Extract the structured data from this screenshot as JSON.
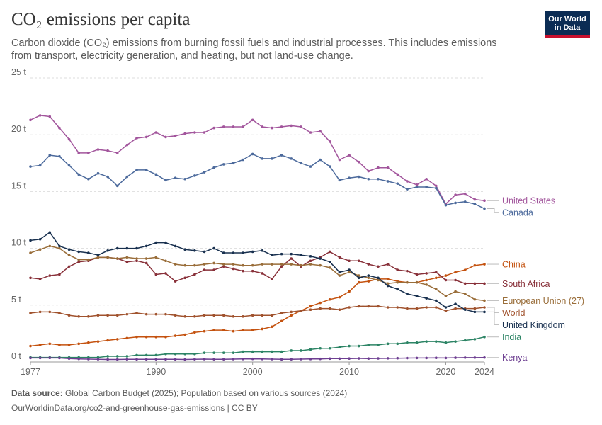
{
  "header": {
    "title": "CO₂ emissions per capita",
    "subtitle": "Carbon dioxide (CO₂) emissions from burning fossil fuels and industrial processes. This includes emissions from transport, electricity generation, and heating, but not land-use change."
  },
  "logo": {
    "line1": "Our World",
    "line2": "in Data",
    "bg_color": "#0b2c54",
    "accent_color": "#c8102e"
  },
  "footer": {
    "source_label": "Data source:",
    "source_text": "Global Carbon Budget (2025); Population based on various sources (2024)",
    "url_text": "OurWorldinData.org/co2-and-greenhouse-gas-emissions | CC BY"
  },
  "chart_data": {
    "type": "line",
    "title": "CO₂ emissions per capita",
    "x_ticks": [
      1977,
      1990,
      2000,
      2010,
      2020,
      2024
    ],
    "y_ticks": [
      {
        "value": 0,
        "label": "0 t"
      },
      {
        "value": 5,
        "label": "5 t"
      },
      {
        "value": 10,
        "label": "10 t"
      },
      {
        "value": 15,
        "label": "15 t"
      },
      {
        "value": 20,
        "label": "20 t"
      },
      {
        "value": 25,
        "label": "25 t"
      }
    ],
    "xlim": [
      1977,
      2024
    ],
    "ylim": [
      0,
      25
    ],
    "grid": "horizontal dashed",
    "legend": "right (line-end labels)",
    "x": [
      1977,
      1978,
      1979,
      1980,
      1981,
      1982,
      1983,
      1984,
      1985,
      1986,
      1987,
      1988,
      1989,
      1990,
      1991,
      1992,
      1993,
      1994,
      1995,
      1996,
      1997,
      1998,
      1999,
      2000,
      2001,
      2002,
      2003,
      2004,
      2005,
      2006,
      2007,
      2008,
      2009,
      2010,
      2011,
      2012,
      2013,
      2014,
      2015,
      2016,
      2017,
      2018,
      2019,
      2020,
      2021,
      2022,
      2023,
      2024
    ],
    "series": [
      {
        "name": "United States",
        "color": "#a2559c",
        "values": [
          21.3,
          21.7,
          21.6,
          20.6,
          19.6,
          18.4,
          18.4,
          18.7,
          18.6,
          18.4,
          19.1,
          19.7,
          19.8,
          20.2,
          19.8,
          19.9,
          20.1,
          20.2,
          20.2,
          20.6,
          20.7,
          20.7,
          20.7,
          21.3,
          20.7,
          20.6,
          20.7,
          20.8,
          20.7,
          20.2,
          20.3,
          19.4,
          17.8,
          18.2,
          17.6,
          16.8,
          17.1,
          17.1,
          16.5,
          15.9,
          15.6,
          16.1,
          15.5,
          13.9,
          14.7,
          14.8,
          14.3,
          14.2
        ]
      },
      {
        "name": "Canada",
        "color": "#4c6a9c",
        "values": [
          17.2,
          17.3,
          18.2,
          18.1,
          17.3,
          16.5,
          16.1,
          16.6,
          16.3,
          15.5,
          16.3,
          16.9,
          16.9,
          16.5,
          16.0,
          16.2,
          16.1,
          16.4,
          16.7,
          17.1,
          17.4,
          17.5,
          17.8,
          18.3,
          17.9,
          17.9,
          18.2,
          17.9,
          17.5,
          17.2,
          17.8,
          17.2,
          16.0,
          16.2,
          16.3,
          16.1,
          16.1,
          15.9,
          15.7,
          15.2,
          15.4,
          15.4,
          15.3,
          13.8,
          14.0,
          14.1,
          13.9,
          13.5
        ]
      },
      {
        "name": "China",
        "color": "#c4520f",
        "values": [
          1.4,
          1.5,
          1.6,
          1.5,
          1.5,
          1.6,
          1.7,
          1.8,
          1.9,
          2.0,
          2.1,
          2.2,
          2.2,
          2.2,
          2.2,
          2.3,
          2.4,
          2.6,
          2.7,
          2.8,
          2.8,
          2.7,
          2.8,
          2.8,
          2.9,
          3.1,
          3.6,
          4.1,
          4.5,
          4.9,
          5.2,
          5.5,
          5.7,
          6.2,
          7.0,
          7.1,
          7.3,
          7.3,
          7.1,
          7.0,
          7.0,
          7.2,
          7.4,
          7.6,
          7.9,
          8.1,
          8.5,
          8.6
        ]
      },
      {
        "name": "South Africa",
        "color": "#883039",
        "values": [
          7.4,
          7.3,
          7.6,
          7.7,
          8.4,
          8.8,
          8.9,
          9.2,
          9.2,
          9.1,
          8.8,
          8.9,
          8.7,
          7.7,
          7.8,
          7.1,
          7.4,
          7.7,
          8.1,
          8.1,
          8.4,
          8.2,
          8.0,
          8.0,
          7.8,
          7.3,
          8.4,
          9.1,
          8.4,
          8.9,
          9.2,
          9.7,
          9.2,
          8.9,
          8.9,
          8.6,
          8.4,
          8.6,
          8.1,
          8.0,
          7.7,
          7.8,
          7.9,
          7.2,
          7.2,
          6.9,
          6.9,
          6.9
        ]
      },
      {
        "name": "European Union (27)",
        "color": "#996d39",
        "values": [
          9.6,
          9.9,
          10.2,
          10.0,
          9.4,
          9.0,
          9.0,
          9.2,
          9.2,
          9.1,
          9.2,
          9.1,
          9.1,
          9.2,
          8.9,
          8.6,
          8.5,
          8.5,
          8.6,
          8.7,
          8.6,
          8.6,
          8.5,
          8.5,
          8.6,
          8.6,
          8.6,
          8.6,
          8.5,
          8.6,
          8.5,
          8.3,
          7.6,
          7.9,
          7.6,
          7.4,
          7.2,
          6.9,
          7.0,
          7.0,
          7.0,
          6.8,
          6.4,
          5.8,
          6.2,
          6.0,
          5.5,
          5.4
        ]
      },
      {
        "name": "World",
        "color": "#a0522d",
        "values": [
          4.3,
          4.4,
          4.4,
          4.3,
          4.1,
          4.0,
          4.0,
          4.1,
          4.1,
          4.1,
          4.2,
          4.3,
          4.2,
          4.2,
          4.2,
          4.1,
          4.0,
          4.0,
          4.1,
          4.1,
          4.1,
          4.0,
          4.0,
          4.1,
          4.1,
          4.1,
          4.3,
          4.4,
          4.5,
          4.6,
          4.7,
          4.7,
          4.6,
          4.8,
          4.9,
          4.9,
          4.9,
          4.8,
          4.8,
          4.7,
          4.7,
          4.8,
          4.8,
          4.5,
          4.7,
          4.7,
          4.7,
          4.8
        ]
      },
      {
        "name": "United Kingdom",
        "color": "#18304f",
        "values": [
          10.7,
          10.8,
          11.4,
          10.2,
          9.9,
          9.7,
          9.6,
          9.4,
          9.8,
          10.0,
          10.0,
          10.0,
          10.2,
          10.5,
          10.5,
          10.2,
          9.9,
          9.8,
          9.7,
          10.0,
          9.6,
          9.6,
          9.6,
          9.7,
          9.8,
          9.4,
          9.5,
          9.5,
          9.4,
          9.3,
          9.1,
          8.8,
          7.9,
          8.1,
          7.4,
          7.6,
          7.4,
          6.7,
          6.4,
          6.0,
          5.8,
          5.6,
          5.4,
          4.8,
          5.1,
          4.6,
          4.4,
          4.4
        ]
      },
      {
        "name": "India",
        "color": "#2c8465",
        "values": [
          0.4,
          0.4,
          0.4,
          0.4,
          0.4,
          0.4,
          0.4,
          0.4,
          0.5,
          0.5,
          0.5,
          0.6,
          0.6,
          0.6,
          0.7,
          0.7,
          0.7,
          0.7,
          0.8,
          0.8,
          0.8,
          0.8,
          0.9,
          0.9,
          0.9,
          0.9,
          0.9,
          1.0,
          1.0,
          1.1,
          1.2,
          1.2,
          1.3,
          1.4,
          1.4,
          1.5,
          1.5,
          1.6,
          1.6,
          1.7,
          1.7,
          1.8,
          1.8,
          1.7,
          1.8,
          1.9,
          2.0,
          2.2
        ]
      },
      {
        "name": "Kenya",
        "color": "#6d3e91",
        "values": [
          0.35,
          0.35,
          0.36,
          0.35,
          0.3,
          0.27,
          0.25,
          0.24,
          0.22,
          0.22,
          0.23,
          0.23,
          0.23,
          0.24,
          0.23,
          0.23,
          0.22,
          0.24,
          0.25,
          0.24,
          0.24,
          0.25,
          0.26,
          0.27,
          0.26,
          0.25,
          0.23,
          0.24,
          0.25,
          0.26,
          0.27,
          0.29,
          0.29,
          0.3,
          0.31,
          0.3,
          0.31,
          0.32,
          0.33,
          0.34,
          0.35,
          0.35,
          0.36,
          0.35,
          0.37,
          0.38,
          0.38,
          0.39
        ]
      }
    ]
  }
}
